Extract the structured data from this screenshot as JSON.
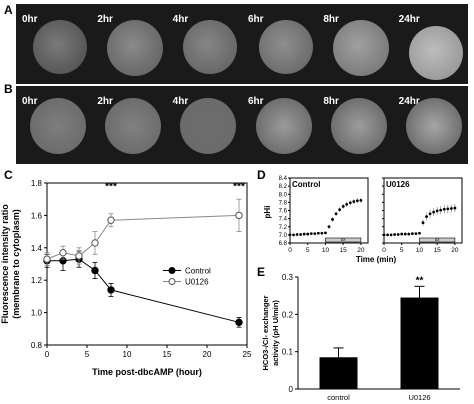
{
  "panels": {
    "a": {
      "letter": "A",
      "labels": [
        "0hr",
        "2hr",
        "4hr",
        "6hr",
        "8hr",
        "24hr"
      ]
    },
    "b": {
      "letter": "B",
      "labels": [
        "0hr",
        "2hr",
        "4hr",
        "6hr",
        "8hr",
        "24hr"
      ]
    },
    "c": {
      "letter": "C"
    },
    "d": {
      "letter": "D",
      "left_title": "Control",
      "right_title": "U0126",
      "bar_label": "8X",
      "xlabel": "Time (min)",
      "ylabel": "pHi"
    },
    "e": {
      "letter": "E"
    }
  },
  "chart_data": [
    {
      "type": "line",
      "xlabel": "Time post-dbcAMP (hour)",
      "ylabel": "Fluorescence intensity ratio\n(membrane to cytoplasm)",
      "xlim": [
        0,
        25
      ],
      "ylim": [
        0.8,
        1.8
      ],
      "xticks": [
        0,
        5,
        10,
        15,
        20,
        25
      ],
      "yticks": [
        0.8,
        1.0,
        1.2,
        1.4,
        1.6,
        1.8
      ],
      "legend": "center-right",
      "series": [
        {
          "name": "Control",
          "marker": "filled-circle",
          "x": [
            0,
            2,
            4,
            6,
            8,
            24
          ],
          "y": [
            1.32,
            1.32,
            1.33,
            1.26,
            1.14,
            0.94
          ],
          "err": [
            0.04,
            0.06,
            0.05,
            0.05,
            0.04,
            0.03
          ]
        },
        {
          "name": "U0126",
          "marker": "open-circle",
          "x": [
            0,
            2,
            4,
            6,
            8,
            24
          ],
          "y": [
            1.33,
            1.37,
            1.35,
            1.43,
            1.57,
            1.6
          ],
          "err": [
            0.04,
            0.04,
            0.05,
            0.07,
            0.04,
            0.1
          ]
        }
      ],
      "annotations": [
        {
          "x": 8,
          "text": "***"
        },
        {
          "x": 24,
          "text": "***"
        }
      ]
    },
    {
      "type": "scatter",
      "title": "Control",
      "xlim": [
        0,
        22
      ],
      "ylim": [
        6.8,
        8.4
      ],
      "xticks": [
        0,
        5,
        10,
        15,
        20
      ],
      "yticks": [
        6.8,
        7.0,
        7.2,
        7.4,
        7.6,
        7.8,
        8.0,
        8.2,
        8.4
      ],
      "bar_range": [
        10,
        20
      ],
      "x": [
        0,
        1,
        2,
        3,
        4,
        5,
        6,
        7,
        8,
        9,
        10,
        11,
        12,
        13,
        14,
        15,
        16,
        17,
        18,
        19,
        20
      ],
      "y": [
        7.0,
        7.0,
        7.01,
        7.01,
        7.02,
        7.02,
        7.03,
        7.03,
        7.04,
        7.04,
        7.05,
        7.2,
        7.38,
        7.52,
        7.62,
        7.7,
        7.75,
        7.79,
        7.82,
        7.84,
        7.85
      ],
      "err": [
        0.03,
        0.03,
        0.03,
        0.03,
        0.03,
        0.03,
        0.03,
        0.03,
        0.03,
        0.03,
        0.03,
        0.05,
        0.06,
        0.06,
        0.06,
        0.06,
        0.06,
        0.06,
        0.06,
        0.06,
        0.06
      ]
    },
    {
      "type": "scatter",
      "title": "U0126",
      "xlim": [
        0,
        22
      ],
      "ylim": [
        6.8,
        8.4
      ],
      "xticks": [
        0,
        5,
        10,
        15,
        20
      ],
      "yticks": [
        6.8,
        7.0,
        7.2,
        7.4,
        7.6,
        7.8,
        8.0,
        8.2,
        8.4
      ],
      "bar_range": [
        10,
        20
      ],
      "x": [
        0,
        1,
        2,
        3,
        4,
        5,
        6,
        7,
        8,
        9,
        10,
        11,
        12,
        13,
        14,
        15,
        16,
        17,
        18,
        19,
        20
      ],
      "y": [
        7.0,
        7.0,
        7.0,
        7.01,
        7.01,
        7.02,
        7.02,
        7.02,
        7.03,
        7.03,
        7.04,
        7.3,
        7.45,
        7.52,
        7.56,
        7.59,
        7.61,
        7.63,
        7.64,
        7.65,
        7.66
      ],
      "err": [
        0.03,
        0.03,
        0.03,
        0.03,
        0.03,
        0.03,
        0.03,
        0.03,
        0.03,
        0.03,
        0.03,
        0.08,
        0.1,
        0.1,
        0.1,
        0.1,
        0.1,
        0.1,
        0.1,
        0.1,
        0.1
      ]
    },
    {
      "type": "bar",
      "ylabel": "HCO3-/Cl- exchanger\nactivity (pH U/min)",
      "ylim": [
        0,
        0.3
      ],
      "yticks": [
        0,
        0.1,
        0.2,
        0.3
      ],
      "categories": [
        "control",
        "U0126"
      ],
      "values": [
        0.085,
        0.245
      ],
      "err": [
        0.025,
        0.03
      ],
      "annotations": [
        {
          "category": "U0126",
          "text": "**"
        }
      ]
    }
  ]
}
